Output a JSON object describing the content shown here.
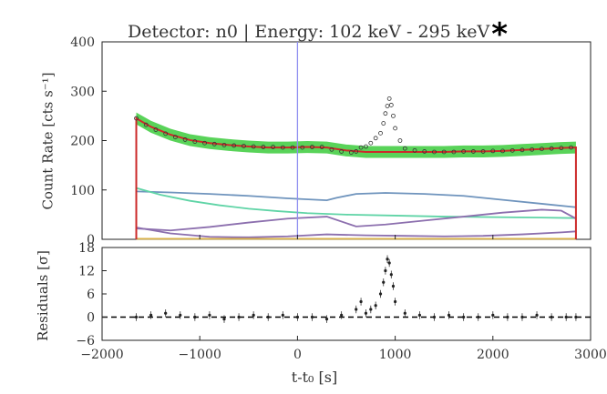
{
  "chart_data": [
    {
      "type": "scatter",
      "panel": "top",
      "title": "Detector: n0 | Energy: 102 keV - 295 keV",
      "title_mark": "*",
      "ylabel": "Count Rate [cts s⁻¹]",
      "xlim": [
        -2000,
        3000
      ],
      "ylim": [
        0,
        400
      ],
      "yticks": [
        0,
        100,
        200,
        300,
        400
      ],
      "grid": false,
      "vline_x": 0,
      "series": [
        {
          "role": "data points",
          "x": [
            -1650,
            -1550,
            -1450,
            -1350,
            -1250,
            -1150,
            -1050,
            -950,
            -850,
            -750,
            -650,
            -550,
            -450,
            -350,
            -250,
            -150,
            -50,
            50,
            150,
            250,
            350,
            450,
            550,
            600,
            650,
            700,
            750,
            800,
            850,
            880,
            900,
            920,
            940,
            960,
            980,
            1000,
            1050,
            1100,
            1200,
            1300,
            1400,
            1500,
            1600,
            1700,
            1800,
            1900,
            2000,
            2100,
            2200,
            2300,
            2400,
            2500,
            2600,
            2700,
            2800
          ],
          "y": [
            245,
            232,
            222,
            214,
            207,
            202,
            198,
            195,
            193,
            191,
            190,
            189,
            188,
            187,
            187,
            186,
            186,
            186,
            187,
            187,
            182,
            178,
            176,
            178,
            186,
            188,
            195,
            205,
            215,
            235,
            255,
            270,
            285,
            272,
            250,
            225,
            200,
            184,
            180,
            178,
            177,
            177,
            177,
            178,
            178,
            178,
            179,
            179,
            180,
            181,
            182,
            183,
            184,
            185,
            186
          ]
        },
        {
          "role": "total model",
          "color": "#cc2a2a",
          "x": [
            -1650,
            -1500,
            -1300,
            -1100,
            -900,
            -700,
            -500,
            -300,
            -100,
            100,
            300,
            500,
            700,
            900,
            1100,
            1300,
            1500,
            1700,
            1900,
            2100,
            2300,
            2500,
            2700,
            2850
          ],
          "y": [
            245,
            228,
            212,
            201,
            195,
            191,
            188,
            186,
            186,
            187,
            186,
            180,
            177,
            177,
            177,
            177,
            177,
            178,
            178,
            179,
            181,
            183,
            185,
            186
          ]
        },
        {
          "role": "model envelope",
          "color": "#22c422",
          "x": [
            -1650,
            -1500,
            -1300,
            -1100,
            -900,
            -700,
            -500,
            -300,
            -100,
            100,
            300,
            500,
            700,
            900,
            1100,
            1300,
            1500,
            1700,
            1900,
            2100,
            2300,
            2500,
            2700,
            2850
          ],
          "y": [
            245,
            228,
            212,
            201,
            195,
            191,
            188,
            186,
            186,
            187,
            186,
            180,
            177,
            177,
            177,
            177,
            177,
            178,
            178,
            179,
            181,
            183,
            185,
            186
          ],
          "halfwidth": 12
        },
        {
          "role": "component",
          "color": "#6f94bd",
          "x": [
            -1650,
            -1300,
            -900,
            -500,
            -100,
            300,
            400,
            600,
            900,
            1300,
            1700,
            2100,
            2500,
            2850
          ],
          "y": [
            97,
            95,
            92,
            88,
            83,
            79,
            84,
            92,
            94,
            92,
            88,
            80,
            72,
            65
          ]
        },
        {
          "role": "component",
          "color": "#5fd4a6",
          "x": [
            -1650,
            -1400,
            -1100,
            -800,
            -500,
            -200,
            100,
            500,
            1000,
            1500,
            2000,
            2500,
            2850
          ],
          "y": [
            104,
            90,
            78,
            69,
            62,
            57,
            53,
            50,
            48,
            46,
            45,
            44,
            43
          ]
        },
        {
          "role": "component",
          "color": "#8c6fae",
          "x": [
            -1650,
            -1300,
            -900,
            -500,
            -100,
            300,
            600,
            900,
            1300,
            1700,
            2100,
            2500,
            2700,
            2850
          ],
          "y": [
            22,
            18,
            25,
            34,
            42,
            46,
            26,
            30,
            38,
            46,
            54,
            60,
            58,
            42
          ]
        },
        {
          "role": "component",
          "color": "#8c6fae",
          "x": [
            -1650,
            -1300,
            -900,
            -500,
            -100,
            300,
            700,
            1100,
            1500,
            1900,
            2300,
            2700,
            2850
          ],
          "y": [
            24,
            12,
            5,
            4,
            6,
            10,
            8,
            7,
            6,
            7,
            10,
            14,
            16
          ]
        },
        {
          "role": "component",
          "color": "#d8b04a",
          "x": [
            -1650,
            2850
          ],
          "y": [
            1,
            1
          ]
        }
      ]
    },
    {
      "type": "scatter",
      "panel": "bottom",
      "ylabel": "Residuals [σ]",
      "xlabel": "t-t₀ [s]",
      "xlim": [
        -2000,
        3000
      ],
      "ylim": [
        -6,
        18
      ],
      "yticks": [
        -6,
        0,
        6,
        12,
        18
      ],
      "xticks": [
        -2000,
        -1000,
        0,
        1000,
        2000,
        3000
      ],
      "xticklabels": [
        "−2000",
        "−1000",
        "0",
        "1000",
        "2000",
        "3000"
      ],
      "yticklabels": [
        "−6",
        "0",
        "6",
        "12",
        "18"
      ],
      "reference_line_y": 0,
      "series": [
        {
          "role": "residuals",
          "x": [
            -1650,
            -1500,
            -1350,
            -1200,
            -1050,
            -900,
            -750,
            -600,
            -450,
            -300,
            -150,
            0,
            150,
            300,
            450,
            600,
            650,
            700,
            750,
            800,
            850,
            880,
            900,
            920,
            940,
            960,
            980,
            1000,
            1100,
            1250,
            1400,
            1550,
            1700,
            1850,
            2000,
            2150,
            2300,
            2450,
            2600,
            2750,
            2850
          ],
          "y": [
            0,
            0.5,
            1,
            0.5,
            0,
            0.5,
            -0.5,
            0,
            0.5,
            0,
            0.5,
            0,
            0,
            -0.5,
            0.5,
            2,
            4,
            1,
            2,
            3,
            6,
            9,
            12,
            15,
            14,
            11,
            8,
            4,
            1,
            0.5,
            0,
            0.5,
            0,
            0,
            0.5,
            0,
            0,
            0.5,
            0,
            0,
            0
          ]
        }
      ]
    }
  ]
}
